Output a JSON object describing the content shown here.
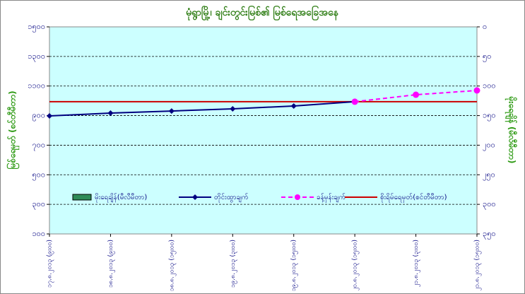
{
  "chart_data": {
    "type": "line",
    "title": "မုံရွာမြို့၊ ချင်းတွင်းမြစ်၏ မြစ်ရေအခြေအနေ",
    "y_label": "မြစ်ရေမှတ် (စင်တီမီတာ)",
    "y2_label": "မိုးရေချိန် (မီလီမီတာ)",
    "categories": [
      "၁၇.၈.၂၀၁၃ (၉း၀၀)",
      "၁၈.၈.၂၀၁၃ (၉း၀၀)",
      "၁၈.၈.၂၀၁၃ (၁၅း၀၀)",
      "၁၉.၈.၂၀၁၃ (၃း၀၀)",
      "၁၉.၈.၂၀၁၃ (၁၅း၀၀)",
      "၂၀.၈.၂၀၁၃ (၁၅း၀၀)",
      "၂၁.၈.၂၀၁၃ (၃း၀၀)",
      "၂၁.၈.၂၀၁၃ (၁၅း၀၀)"
    ],
    "series": [
      {
        "name": "မိုးရေချိန်(မီလီမီတာ)",
        "type": "bar",
        "axis": "y2",
        "color": "#2e8b57",
        "values": [
          null,
          null,
          null,
          null,
          null,
          null,
          null,
          null
        ]
      },
      {
        "name": "တိုင်းထွာချက်",
        "type": "line",
        "color": "#000080",
        "marker": "diamond",
        "values": [
          898,
          917,
          931,
          946,
          965,
          994,
          null,
          null
        ]
      },
      {
        "name": "ခန့်မှန်းချက်",
        "type": "line",
        "color": "#ff00ff",
        "marker": "circle",
        "dashed": true,
        "values": [
          null,
          null,
          null,
          null,
          null,
          994,
          1041,
          1070
        ]
      }
    ],
    "reference_line": {
      "name": "စိုးရိမ်ရေမှတ်(စင်တီမီတာ)",
      "color": "#cc0000",
      "value": 994
    },
    "ylim": [
      100,
      1500
    ],
    "yticks": [
      {
        "value": 100,
        "label": "၁၀၀"
      },
      {
        "value": 300,
        "label": "၃၀၀"
      },
      {
        "value": 500,
        "label": "၅၀၀"
      },
      {
        "value": 700,
        "label": "၇၀၀"
      },
      {
        "value": 900,
        "label": "၉၀၀"
      },
      {
        "value": 1100,
        "label": "၁၁၀၀"
      },
      {
        "value": 1300,
        "label": "၁၃၀၀"
      },
      {
        "value": 1500,
        "label": "၁၅၀၀"
      }
    ],
    "y2lim": [
      350,
      0
    ],
    "y2ticks": [
      {
        "value": 0,
        "label": "၀"
      },
      {
        "value": 50,
        "label": "၅၀"
      },
      {
        "value": 100,
        "label": "၁၀၀"
      },
      {
        "value": 150,
        "label": "၁၅၀"
      },
      {
        "value": 200,
        "label": "၂၀၀"
      },
      {
        "value": 250,
        "label": "၂၅၀"
      },
      {
        "value": 300,
        "label": "၃၀၀"
      },
      {
        "value": 350,
        "label": "၃၅၀"
      }
    ],
    "grid": true
  }
}
